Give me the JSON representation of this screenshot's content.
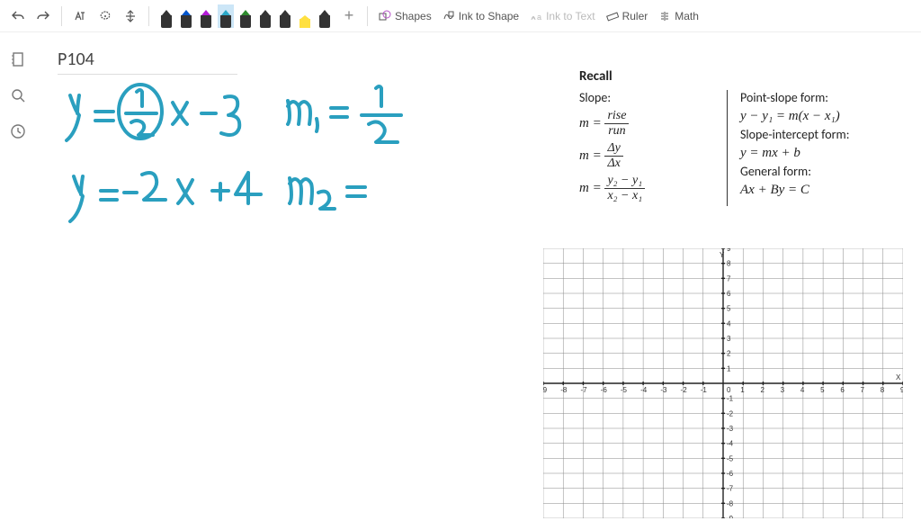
{
  "toolbar": {
    "undo_tip": "Undo",
    "redo_tip": "Redo",
    "lasso_tip": "Lasso",
    "addpage_tip": "Add Page",
    "space_tip": "Insert Space",
    "pens": [
      {
        "tip": "#333333",
        "body": "#333333",
        "hl": false
      },
      {
        "tip": "#0055cc",
        "body": "#333333",
        "hl": false
      },
      {
        "tip": "#b31bd6",
        "body": "#333333",
        "hl": false
      },
      {
        "tip": "#2aa8c8",
        "body": "#333333",
        "hl": false,
        "selected": true
      },
      {
        "tip": "#2e8b2e",
        "body": "#333333",
        "hl": false
      },
      {
        "tip": "#333333",
        "body": "#333333",
        "hl": false
      },
      {
        "tip": "#333333",
        "body": "#333333",
        "hl": false
      },
      {
        "tip": "#ffe040",
        "body": "#ffe040",
        "hl": true
      },
      {
        "tip": "#333333",
        "body": "#333333",
        "hl": false
      }
    ],
    "add_pen": "+",
    "shapes": "Shapes",
    "ink_to_shape": "Ink to Shape",
    "ink_to_text": "Ink to Text",
    "ruler": "Ruler",
    "math": "Math"
  },
  "rail": {
    "notebooks": "Notebooks",
    "search": "Search",
    "recent": "Recent"
  },
  "page": {
    "title": "P104"
  },
  "ink": {
    "color1": "#2a9fbf",
    "eq1": "y=½ x - 3",
    "note1": "m₁ = ½",
    "eq2": "y= -2 x + 4",
    "note2": "m₂ ="
  },
  "recall": {
    "title": "Recall",
    "slope_label": "Slope:",
    "slope1": {
      "lhs": "m =",
      "num": "rise",
      "den": "run"
    },
    "slope2": {
      "lhs": "m =",
      "num": "Δy",
      "den": "Δx"
    },
    "slope3": {
      "lhs": "m =",
      "num": "y₂ − y₁",
      "den": "x₂ − x₁"
    },
    "ps_label": "Point-slope form:",
    "ps_eq": "y − y₁ = m(x − x₁)",
    "si_label": "Slope-intercept form:",
    "si_eq": "y = mx + b",
    "gf_label": "General form:",
    "gf_eq": "Ax + By = C"
  },
  "graph": {
    "x_label": "X",
    "y_label": "Y",
    "xmin": -9,
    "xmax": 9,
    "ymin": -9,
    "ymax": 9,
    "tick": 1,
    "grid_color": "#aaaaaa",
    "axis_color": "#333333"
  }
}
